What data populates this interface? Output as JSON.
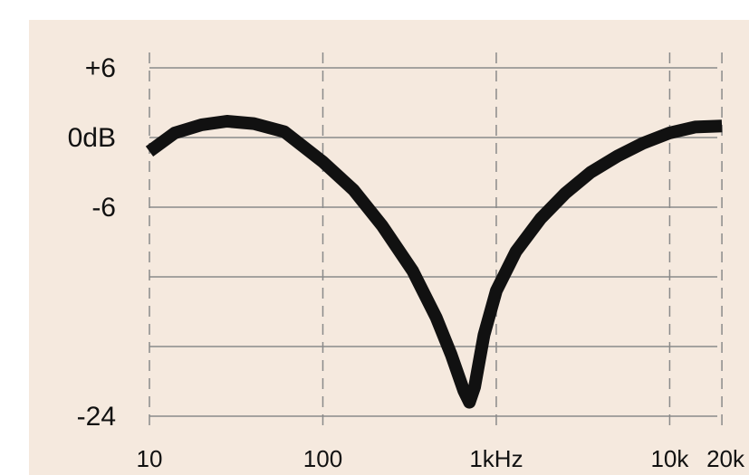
{
  "colors": {
    "panel_background": "#f5e9de",
    "page_background": "#ffffff",
    "grid": "#8a8a8a",
    "curve": "#111111",
    "text": "#111111"
  },
  "chart_data": {
    "type": "line",
    "title": "",
    "xlabel": "",
    "ylabel": "",
    "x_scale": "log",
    "xlim": [
      10,
      22000
    ],
    "ylim": [
      -24,
      6
    ],
    "grid": true,
    "x_grid_style": "dashed",
    "y_grid_style": "solid",
    "y_ticks": [
      {
        "value": 6,
        "label": "+6"
      },
      {
        "value": 0,
        "label": "0dB"
      },
      {
        "value": -6,
        "label": "-6"
      },
      {
        "value": -12,
        "label": ""
      },
      {
        "value": -18,
        "label": ""
      },
      {
        "value": -24,
        "label": "-24"
      }
    ],
    "x_ticks": [
      {
        "value": 10,
        "label": "10"
      },
      {
        "value": 100,
        "label": "100"
      },
      {
        "value": 1000,
        "label": "1kHz"
      },
      {
        "value": 10000,
        "label": "10k"
      },
      {
        "value": 20000,
        "label": "20k"
      }
    ],
    "series": [
      {
        "x": [
          10,
          14,
          20,
          28,
          40,
          60,
          100,
          150,
          220,
          330,
          450,
          550,
          650,
          700,
          750,
          850,
          1000,
          1300,
          1800,
          2500,
          3500,
          5000,
          7000,
          10000,
          14000,
          20000
        ],
        "y": [
          -1.2,
          0.4,
          1.1,
          1.4,
          1.2,
          0.5,
          -2.1,
          -4.5,
          -7.6,
          -11.5,
          -15.5,
          -18.7,
          -21.8,
          -22.8,
          -21.5,
          -17.0,
          -13.2,
          -9.8,
          -7.0,
          -4.8,
          -3.0,
          -1.6,
          -0.5,
          0.4,
          0.9,
          1.0
        ]
      }
    ]
  }
}
